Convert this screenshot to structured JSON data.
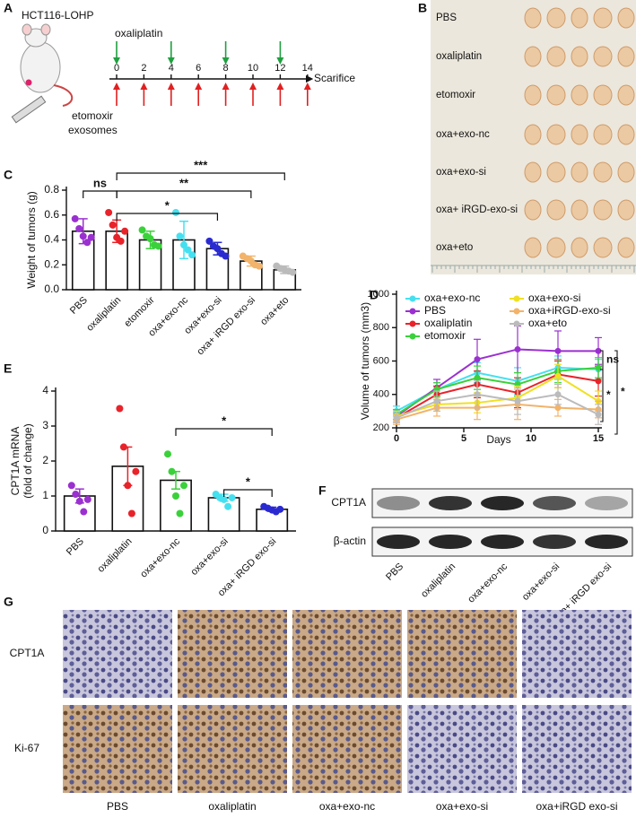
{
  "panel_letters": [
    "A",
    "B",
    "C",
    "D",
    "E",
    "F",
    "G"
  ],
  "schedule": {
    "cell_line": "HCT116-LOHP",
    "drug_top": "oxaliplatin",
    "days": [
      0,
      2,
      4,
      6,
      8,
      10,
      12,
      14
    ],
    "oxaliplatin_days": [
      0,
      4,
      8,
      12
    ],
    "end": "Scarifice",
    "drug_bottom": [
      "etomoxir",
      "exosomes"
    ]
  },
  "photo": {
    "rows": [
      "PBS",
      "oxaliplatin",
      "etomoxir",
      "oxa+exo-nc",
      "oxa+exo-si",
      "oxa+ iRGD-exo-si",
      "oxa+eto"
    ]
  },
  "chart_data": [
    {
      "type": "bar",
      "ylabel": "Weight of tumors (g)",
      "categories": [
        "PBS",
        "oxaliplatin",
        "etomoxir",
        "oxa+exo-nc",
        "oxa+exo-si",
        "oxa+ iRGD exo-si",
        "oxa+eto"
      ],
      "values": [
        0.47,
        0.47,
        0.4,
        0.4,
        0.33,
        0.23,
        0.16
      ],
      "errors": [
        0.1,
        0.09,
        0.07,
        0.15,
        0.05,
        0.04,
        0.03
      ],
      "points": [
        [
          0.57,
          0.49,
          0.43,
          0.38,
          0.42
        ],
        [
          0.62,
          0.52,
          0.42,
          0.39,
          0.47
        ],
        [
          0.48,
          0.43,
          0.41,
          0.36,
          0.35
        ],
        [
          0.62,
          0.43,
          0.36,
          0.32,
          0.28
        ],
        [
          0.39,
          0.35,
          0.33,
          0.29,
          0.27
        ],
        [
          0.27,
          0.25,
          0.23,
          0.2,
          0.19
        ],
        [
          0.19,
          0.17,
          0.16,
          0.15,
          0.14
        ]
      ],
      "colors": [
        "#9b30d0",
        "#e8232a",
        "#3ad13a",
        "#45e0f0",
        "#2a2ad0",
        "#f2b36a",
        "#bbbbbb"
      ],
      "ylim": [
        0,
        0.8
      ],
      "yticks": [
        {
          "value": 0,
          "label": "0.0"
        },
        0.2,
        0.4,
        0.6,
        0.8
      ],
      "annotations": [
        "ns",
        "*",
        "**",
        "***"
      ]
    },
    {
      "type": "line",
      "xlabel": "Days",
      "ylabel": "Volume of tumors (mm3)",
      "x": [
        0,
        3,
        6,
        9,
        12,
        15
      ],
      "series": [
        {
          "name": "oxa+exo-nc",
          "color": "#45e0f0",
          "values": [
            300,
            430,
            530,
            480,
            560,
            550
          ],
          "errors": [
            30,
            40,
            60,
            80,
            70,
            60
          ]
        },
        {
          "name": "PBS",
          "color": "#9b30d0",
          "values": [
            270,
            440,
            610,
            670,
            660,
            660
          ],
          "errors": [
            30,
            50,
            120,
            140,
            120,
            80
          ]
        },
        {
          "name": "oxaliplatin",
          "color": "#e8232a",
          "values": [
            260,
            400,
            460,
            410,
            520,
            480
          ],
          "errors": [
            30,
            50,
            80,
            90,
            80,
            90
          ]
        },
        {
          "name": "etomoxir",
          "color": "#3ad13a",
          "values": [
            280,
            430,
            500,
            460,
            540,
            560
          ],
          "errors": [
            30,
            40,
            70,
            70,
            70,
            60
          ]
        },
        {
          "name": "oxa+exo-si",
          "color": "#f0e020",
          "values": [
            270,
            340,
            350,
            380,
            510,
            360
          ],
          "errors": [
            30,
            40,
            60,
            70,
            70,
            60
          ]
        },
        {
          "name": "oxa+iRGD-exo-si",
          "color": "#f2b36a",
          "values": [
            250,
            320,
            320,
            340,
            320,
            310
          ],
          "errors": [
            30,
            50,
            70,
            90,
            50,
            50
          ]
        },
        {
          "name": "oxa+eto",
          "color": "#bbbbbb",
          "values": [
            260,
            360,
            400,
            360,
            400,
            280
          ],
          "errors": [
            30,
            60,
            80,
            80,
            60,
            60
          ]
        }
      ],
      "xlim": [
        0,
        15
      ],
      "xticks": [
        0,
        5,
        10,
        15
      ],
      "ylim": [
        200,
        1000
      ],
      "yticks": [
        200,
        400,
        600,
        800,
        1000
      ],
      "annotations": [
        "ns",
        "*",
        "*"
      ]
    },
    {
      "type": "bar",
      "ylabel": [
        "CPT1A mRNA",
        "(fold of change)"
      ],
      "categories": [
        "PBS",
        "oxaliplatin",
        "oxa+exo-nc",
        "oxa+exo-si",
        "oxa+ iRGD exo-si"
      ],
      "values": [
        1.0,
        1.85,
        1.45,
        0.95,
        0.62
      ],
      "errors": [
        0.2,
        0.55,
        0.25,
        0.1,
        0.06
      ],
      "points": [
        [
          1.3,
          1.05,
          0.85,
          0.55,
          0.9
        ],
        [
          3.5,
          2.4,
          1.3,
          0.5,
          1.7
        ],
        [
          2.2,
          1.7,
          1.0,
          0.5,
          1.3
        ],
        [
          1.05,
          0.95,
          0.9,
          0.7,
          0.95
        ],
        [
          0.7,
          0.65,
          0.6,
          0.55,
          0.62
        ]
      ],
      "colors": [
        "#9b30d0",
        "#e8232a",
        "#3ad13a",
        "#45e0f0",
        "#2a2ad0"
      ],
      "ylim": [
        0,
        4
      ],
      "yticks": [
        0,
        1,
        2,
        3,
        4
      ],
      "annotations": [
        "*",
        "*"
      ]
    }
  ],
  "blot": {
    "bands": [
      "CPT1A",
      "β-actin"
    ],
    "lanes": [
      "PBS",
      "oxaliplatin",
      "oxa+exo-nc",
      "oxa+exo-si",
      "oxa+ iRGD exo-si"
    ]
  },
  "histology": {
    "rows": [
      "CPT1A",
      "Ki-67"
    ],
    "columns": [
      "PBS",
      "oxaliplatin",
      "oxa+exo-nc",
      "oxa+exo-si",
      "oxa+iRGD exo-si"
    ]
  }
}
